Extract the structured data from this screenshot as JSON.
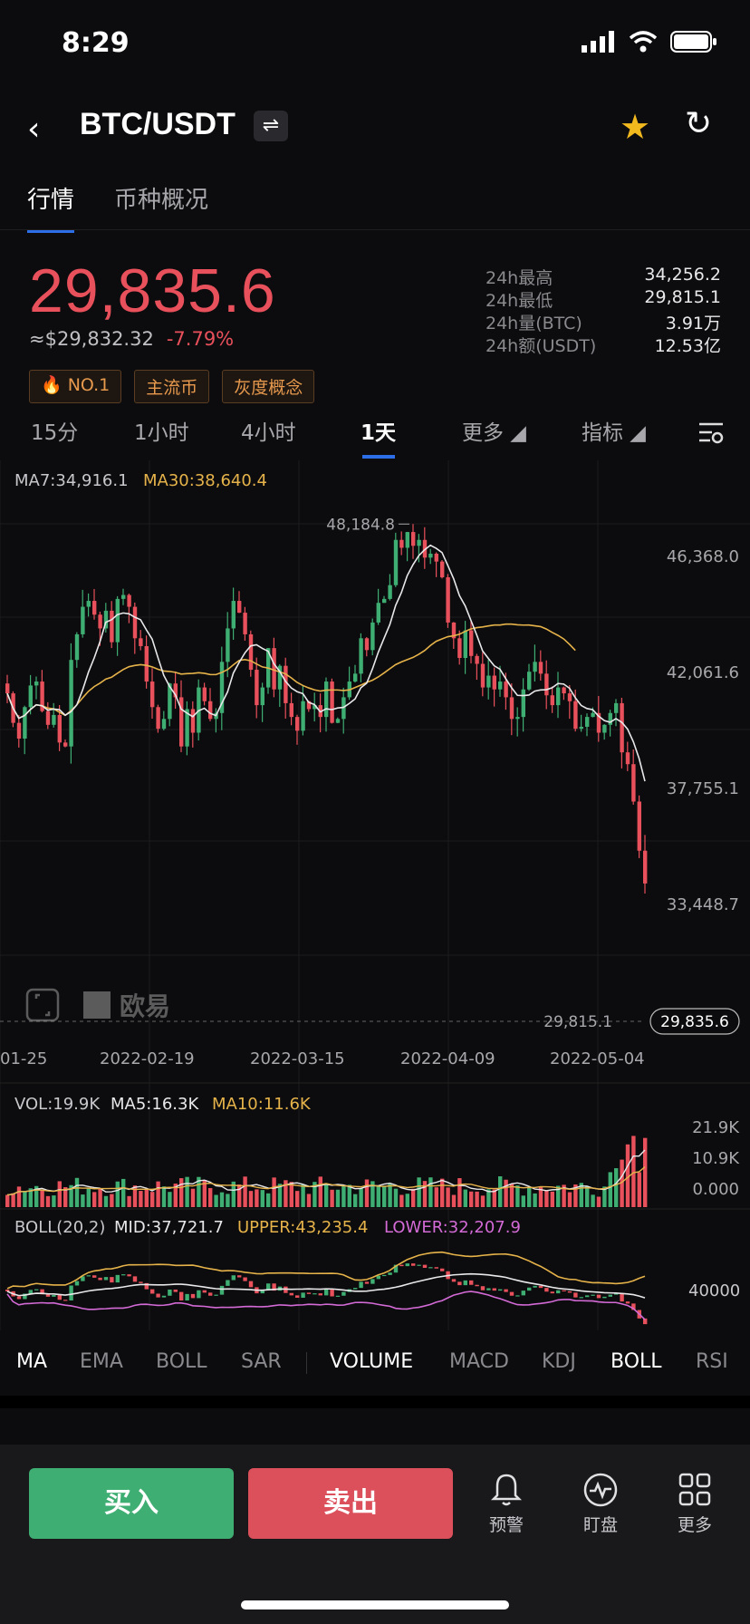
{
  "status": {
    "time": "8:29"
  },
  "header": {
    "pair": "BTC/USDT",
    "swap_icon": "⇌",
    "back_icon": "‹",
    "star_icon": "★",
    "refresh_icon": "↻"
  },
  "tabs": [
    {
      "label": "行情"
    },
    {
      "label": "币种概况"
    }
  ],
  "ticker": {
    "price": "29,835.6",
    "fiat": "≈$29,832.32",
    "change": "-7.79%",
    "badges": [
      "🔥 NO.1",
      "主流币",
      "灰度概念"
    ],
    "stats": [
      {
        "k": "24h最高",
        "v": "34,256.2"
      },
      {
        "k": "24h最低",
        "v": "29,815.1"
      },
      {
        "k": "24h量(BTC)",
        "v": "3.91万"
      },
      {
        "k": "24h额(USDT)",
        "v": "12.53亿"
      }
    ]
  },
  "periods": {
    "p1": "15分",
    "p2": "1小时",
    "p3": "4小时",
    "p4": "1天",
    "more": "更多 ◢",
    "indicator": "指标 ◢"
  },
  "chart_data": [
    {
      "type": "candlestick",
      "title": "",
      "legend": {
        "ma7": "MA7:34,916.1",
        "ma30": "MA30:38,640.4"
      },
      "price_ticks": [
        "46,368.0",
        "42,061.6",
        "37,755.1",
        "33,448.7"
      ],
      "ylim": [
        29000,
        49500
      ],
      "x_ticks": [
        "01-25",
        "2022-02-19",
        "2022-03-15",
        "2022-04-09",
        "2022-05-04"
      ],
      "high_label": "48,184.8",
      "low_label": "29,815.1",
      "current_label": "29,835.6",
      "watermark": "欧易",
      "colors": {
        "up": "#3fae73",
        "down": "#e8505b",
        "ma7": "#e8e8ea",
        "ma30": "#e6b34a"
      },
      "closes": [
        39500,
        38000,
        37200,
        38800,
        39900,
        40100,
        38600,
        37900,
        38400,
        37000,
        36800,
        41200,
        42500,
        43900,
        44200,
        43500,
        42800,
        43700,
        42100,
        44300,
        44500,
        43900,
        42300,
        41900,
        40100,
        38800,
        37700,
        38200,
        40000,
        39300,
        36800,
        38700,
        37500,
        39800,
        39100,
        38200,
        38500,
        41100,
        42800,
        44200,
        43600,
        42500,
        40700,
        38900,
        39800,
        41800,
        39700,
        40900,
        39000,
        38300,
        37600,
        39100,
        38700,
        38900,
        38300,
        40100,
        38000,
        38200,
        39300,
        40100,
        40500,
        42300,
        41700,
        43100,
        44100,
        44300,
        45000,
        47300,
        46900,
        47700,
        47000,
        47300,
        46400,
        46600,
        46200,
        45400,
        43100,
        42300,
        41300,
        42700,
        41400,
        41000,
        39800,
        40400,
        39700,
        40100,
        39300,
        38200,
        38300,
        39700,
        40600,
        41100,
        40500,
        39400,
        38900,
        39800,
        39500,
        39100,
        37700,
        37800,
        38300,
        38500,
        37500,
        37900,
        38500,
        39000,
        36500,
        35900,
        34000,
        31500,
        29835
      ]
    },
    {
      "type": "bar",
      "title": "",
      "legend": {
        "vol": "VOL:19.9K",
        "ma5": "MA5:16.3K",
        "ma10": "MA10:11.6K"
      },
      "y_ticks": [
        "21.9K",
        "10.9K",
        "0.000"
      ],
      "ylim": [
        0,
        21900
      ]
    },
    {
      "type": "line",
      "title": "",
      "legend": {
        "boll": "BOLL(20,2)",
        "mid": "MID:37,721.7",
        "upper": "UPPER:43,235.4",
        "lower": "LOWER:32,207.9"
      },
      "y_ticks": [
        "40000"
      ]
    }
  ],
  "indicator_tabs": [
    "MA",
    "EMA",
    "BOLL",
    "SAR",
    "VOLUME",
    "MACD",
    "KDJ",
    "BOLL",
    "RSI"
  ],
  "bottom": {
    "buy": "买入",
    "sell": "卖出",
    "alert": "预警",
    "watch": "盯盘",
    "more": "更多"
  }
}
